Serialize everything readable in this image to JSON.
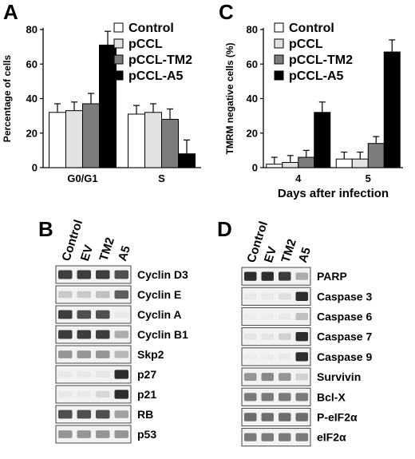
{
  "figure": {
    "panels": {
      "A": "A",
      "B": "B",
      "C": "C",
      "D": "D"
    }
  },
  "chart_data": [
    {
      "panel": "A",
      "type": "bar",
      "title": "",
      "xlabel": "",
      "ylabel": "Percentage of cells",
      "ylim": [
        0,
        80
      ],
      "yticks": [
        0,
        20,
        40,
        60,
        80
      ],
      "categories": [
        "G0/G1",
        "S"
      ],
      "legend_position": "top-right",
      "series": [
        {
          "name": "Control",
          "color": "#ffffff",
          "values": [
            32,
            31
          ],
          "errors": [
            5,
            5
          ]
        },
        {
          "name": "pCCL",
          "color": "#e2e2e2",
          "values": [
            33,
            32
          ],
          "errors": [
            5,
            5
          ]
        },
        {
          "name": "pCCL-TM2",
          "color": "#7c7c7c",
          "values": [
            37,
            28
          ],
          "errors": [
            6,
            6
          ]
        },
        {
          "name": "pCCL-A5",
          "color": "#000000",
          "values": [
            71,
            8
          ],
          "errors": [
            8,
            8
          ]
        }
      ]
    },
    {
      "panel": "C",
      "type": "bar",
      "title": "",
      "xlabel": "Days after infection",
      "ylabel": "TMRM negative cells (%)",
      "ylim": [
        0,
        80
      ],
      "yticks": [
        0,
        20,
        40,
        60,
        80
      ],
      "categories": [
        "4",
        "5"
      ],
      "legend_position": "top-left",
      "series": [
        {
          "name": "Control",
          "color": "#ffffff",
          "values": [
            2,
            5
          ],
          "errors": [
            4,
            4
          ]
        },
        {
          "name": "pCCL",
          "color": "#e2e2e2",
          "values": [
            3,
            5
          ],
          "errors": [
            4,
            4
          ]
        },
        {
          "name": "pCCL-TM2",
          "color": "#7c7c7c",
          "values": [
            6,
            14
          ],
          "errors": [
            4,
            4
          ]
        },
        {
          "name": "pCCL-A5",
          "color": "#000000",
          "values": [
            32,
            67
          ],
          "errors": [
            6,
            7
          ]
        }
      ]
    }
  ],
  "blots": {
    "B": {
      "lanes": [
        "Control",
        "EV",
        "TM2",
        "A5"
      ],
      "bands": [
        {
          "name": "Cyclin D3",
          "intensity": [
            0.9,
            0.9,
            0.9,
            0.85
          ]
        },
        {
          "name": "Cyclin E",
          "intensity": [
            0.35,
            0.35,
            0.4,
            0.8
          ]
        },
        {
          "name": "Cyclin A",
          "intensity": [
            0.9,
            0.85,
            0.85,
            0.1
          ]
        },
        {
          "name": "Cyclin B1",
          "intensity": [
            0.9,
            0.9,
            0.9,
            0.5
          ]
        },
        {
          "name": "Skp2",
          "intensity": [
            0.6,
            0.6,
            0.6,
            0.45
          ]
        },
        {
          "name": "p27",
          "intensity": [
            0.1,
            0.1,
            0.15,
            0.95
          ]
        },
        {
          "name": "p21",
          "intensity": [
            0.1,
            0.1,
            0.25,
            0.95
          ]
        },
        {
          "name": "RB",
          "intensity": [
            0.85,
            0.85,
            0.85,
            0.55
          ]
        },
        {
          "name": "p53",
          "intensity": [
            0.6,
            0.6,
            0.6,
            0.6
          ]
        }
      ]
    },
    "D": {
      "lanes": [
        "Control",
        "EV",
        "TM2",
        "A5"
      ],
      "bands": [
        {
          "name": "PARP",
          "intensity": [
            0.95,
            0.95,
            0.9,
            0.5
          ]
        },
        {
          "name": "Caspase 3",
          "intensity": [
            0.1,
            0.1,
            0.2,
            0.95
          ]
        },
        {
          "name": "Caspase 6",
          "intensity": [
            0.05,
            0.05,
            0.1,
            0.4
          ]
        },
        {
          "name": "Caspase 7",
          "intensity": [
            0.15,
            0.15,
            0.3,
            0.95
          ]
        },
        {
          "name": "Caspase 9",
          "intensity": [
            0.05,
            0.05,
            0.1,
            0.95
          ]
        },
        {
          "name": "Survivin",
          "intensity": [
            0.6,
            0.65,
            0.6,
            0.3
          ]
        },
        {
          "name": "Bcl-X",
          "intensity": [
            0.7,
            0.7,
            0.7,
            0.7
          ]
        },
        {
          "name": "P-eIF2α",
          "intensity": [
            0.75,
            0.75,
            0.75,
            0.75
          ]
        },
        {
          "name": "eIF2α",
          "intensity": [
            0.7,
            0.7,
            0.7,
            0.7
          ]
        }
      ]
    }
  }
}
